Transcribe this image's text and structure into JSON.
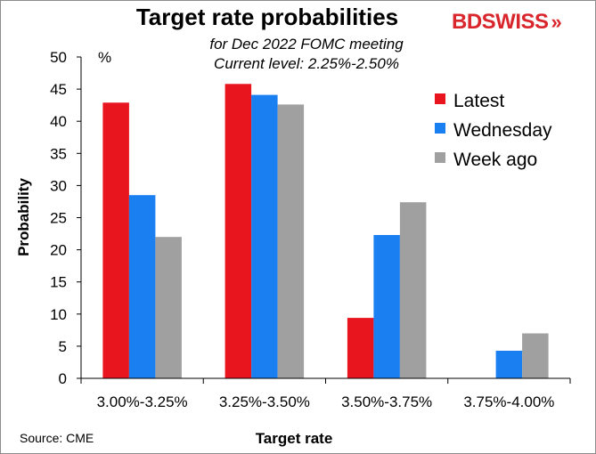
{
  "brand": {
    "logo_text": "BDSWISS",
    "logo_color": "#d9262d"
  },
  "source": "Source: CME",
  "chart_data": {
    "type": "bar",
    "title": "Target rate probabilities",
    "subtitle_line1": "for Dec 2022 FOMC meeting",
    "subtitle_line2": "Current level: 2.25%-2.50%",
    "xlabel": "Target rate",
    "ylabel": "Probability",
    "yunit": "%",
    "ylim": [
      0,
      50
    ],
    "yticks": [
      0,
      5,
      10,
      15,
      20,
      25,
      30,
      35,
      40,
      45,
      50
    ],
    "categories": [
      "3.00%-3.25%",
      "3.25%-3.50%",
      "3.50%-3.75%",
      "3.75%-4.00%"
    ],
    "series": [
      {
        "name": "Latest",
        "color": "#e8141e",
        "values": [
          42.9,
          45.8,
          9.4,
          0
        ]
      },
      {
        "name": "Wednesday",
        "color": "#1a7ff0",
        "values": [
          28.5,
          44.1,
          22.3,
          4.3
        ]
      },
      {
        "name": "Week ago",
        "color": "#a0a0a0",
        "values": [
          22.0,
          42.6,
          27.4,
          7.0
        ]
      }
    ],
    "legend_position": "right",
    "grid": false
  }
}
